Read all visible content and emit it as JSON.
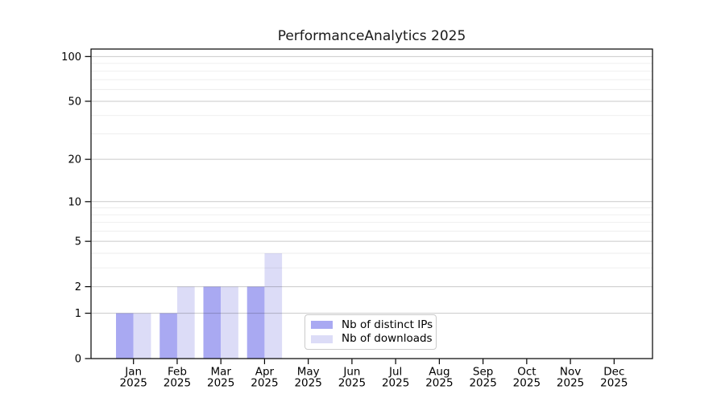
{
  "chart_data": {
    "type": "bar",
    "title": "PerformanceAnalytics 2025",
    "xlabel": "",
    "ylabel": "",
    "categories": [
      "Jan",
      "Feb",
      "Mar",
      "Apr",
      "May",
      "Jun",
      "Jul",
      "Aug",
      "Sep",
      "Oct",
      "Nov",
      "Dec"
    ],
    "x_tick_year_line": "2025",
    "series": [
      {
        "name": "Nb of distinct IPs",
        "color": "#a9a9f2",
        "values": [
          1,
          1,
          2,
          2,
          0,
          0,
          0,
          0,
          0,
          0,
          0,
          0
        ]
      },
      {
        "name": "Nb of downloads",
        "color": "#dcdcf7",
        "values": [
          1,
          2,
          2,
          4,
          0,
          0,
          0,
          0,
          0,
          0,
          0,
          0
        ]
      }
    ],
    "y_axis": {
      "scale": "log1p",
      "major_ticks": [
        0,
        1,
        2,
        5,
        10,
        20,
        50,
        100
      ],
      "minor_gridlines": [
        3,
        4,
        6,
        7,
        8,
        9,
        30,
        40,
        60,
        70,
        80,
        90
      ],
      "ylim": [
        0,
        112
      ]
    },
    "grid": true,
    "legend": {
      "position": "bottom-center",
      "labels": [
        "Nb of distinct IPs",
        "Nb of downloads"
      ]
    },
    "colors": {
      "axis": "#000000",
      "major_grid": "#c9c9c9",
      "minor_grid": "#ececec",
      "background": "#ffffff"
    }
  }
}
